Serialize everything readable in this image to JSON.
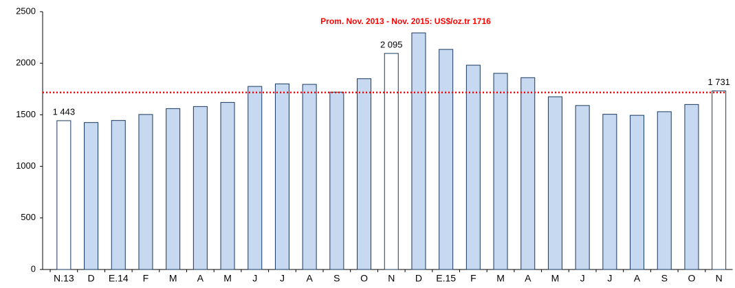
{
  "chart_data": {
    "type": "bar",
    "categories": [
      "N.13",
      "D",
      "E.14",
      "F",
      "M",
      "A",
      "M",
      "J",
      "J",
      "A",
      "S",
      "O",
      "N",
      "D",
      "E.15",
      "F",
      "M",
      "A",
      "M",
      "J",
      "J",
      "A",
      "S",
      "O",
      "N"
    ],
    "values": [
      1443,
      1425,
      1445,
      1503,
      1560,
      1580,
      1620,
      1775,
      1800,
      1795,
      1720,
      1850,
      2095,
      2294,
      2134,
      1981,
      1902,
      1860,
      1675,
      1590,
      1505,
      1495,
      1530,
      1600,
      1731
    ],
    "value_labels": [
      "1 443",
      null,
      null,
      null,
      null,
      null,
      null,
      null,
      null,
      null,
      null,
      null,
      "2 095",
      null,
      null,
      null,
      null,
      null,
      null,
      null,
      null,
      null,
      null,
      null,
      "1 731"
    ],
    "colors": [
      "#ffffff",
      "#c6d9f1",
      "#c6d9f1",
      "#c6d9f1",
      "#c6d9f1",
      "#c6d9f1",
      "#c6d9f1",
      "#c6d9f1",
      "#c6d9f1",
      "#c6d9f1",
      "#c6d9f1",
      "#c6d9f1",
      "#ffffff",
      "#c6d9f1",
      "#c6d9f1",
      "#c6d9f1",
      "#c6d9f1",
      "#c6d9f1",
      "#c6d9f1",
      "#c6d9f1",
      "#c6d9f1",
      "#c6d9f1",
      "#c6d9f1",
      "#c6d9f1",
      "#ffffff"
    ],
    "edge_color": "#17375e",
    "reference_line": {
      "value": 1716,
      "label": "Prom. Nov. 2013 - Nov. 2015: US$/oz.tr 1716",
      "color": "#ff0000"
    },
    "ylim": [
      0,
      2500
    ],
    "yticks": [
      0,
      500,
      1000,
      1500,
      2000,
      2500
    ],
    "grid": false
  }
}
